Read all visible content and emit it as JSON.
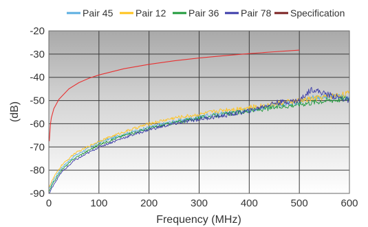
{
  "chart_data": {
    "type": "line",
    "title": "",
    "xlabel": "Frequency (MHz)",
    "ylabel": "(dB)",
    "xlim": [
      0,
      600
    ],
    "ylim": [
      -90,
      -20
    ],
    "x_ticks": [
      0,
      100,
      200,
      300,
      400,
      500,
      600
    ],
    "y_ticks": [
      -20,
      -30,
      -40,
      -50,
      -60,
      -70,
      -80,
      -90
    ],
    "x_tick_labels": [
      "0",
      "100",
      "200",
      "300",
      "400",
      "500",
      "600"
    ],
    "y_tick_labels": [
      "-20",
      "-30",
      "-40",
      "-50",
      "-60",
      "-70",
      "-80",
      "-90"
    ],
    "grid": true,
    "legend_position": "top",
    "background": "gradient gray (dark top to white bottom)",
    "series": [
      {
        "name": "Pair 45",
        "color": "#5aaee0",
        "x": [
          1,
          10,
          25,
          50,
          100,
          150,
          200,
          250,
          300,
          350,
          400,
          450,
          500,
          525,
          550,
          600
        ],
        "y": [
          -88,
          -84,
          -79,
          -74,
          -68,
          -64.5,
          -61.5,
          -59,
          -57,
          -55.5,
          -54,
          -52,
          -50.5,
          -48.5,
          -48.5,
          -48
        ]
      },
      {
        "name": "Pair 12",
        "color": "#ffc21a",
        "x": [
          1,
          10,
          25,
          50,
          100,
          150,
          200,
          250,
          300,
          350,
          400,
          450,
          500,
          550,
          600
        ],
        "y": [
          -87,
          -83,
          -78,
          -73,
          -67.5,
          -63.5,
          -60,
          -57.5,
          -56,
          -54,
          -53,
          -51.5,
          -50,
          -48.5,
          -47
        ]
      },
      {
        "name": "Pair 36",
        "color": "#1e9a3a",
        "x": [
          1,
          10,
          25,
          50,
          100,
          150,
          200,
          250,
          300,
          350,
          400,
          450,
          500,
          550,
          600
        ],
        "y": [
          -89,
          -85,
          -80,
          -75,
          -69,
          -65,
          -62,
          -59.5,
          -57.5,
          -56,
          -54.5,
          -53,
          -51.5,
          -50,
          -49
        ]
      },
      {
        "name": "Pair 78",
        "color": "#3a3aa8",
        "x": [
          1,
          10,
          25,
          50,
          100,
          150,
          200,
          250,
          300,
          350,
          400,
          450,
          500,
          525,
          550,
          600
        ],
        "y": [
          -90,
          -86,
          -81,
          -76,
          -70,
          -66,
          -62.5,
          -60,
          -58,
          -56.5,
          -54.5,
          -51,
          -50,
          -45,
          -47,
          -50
        ]
      },
      {
        "name": "Specification",
        "color": "#e83030",
        "legend_color": "#7a1f1f",
        "x": [
          1,
          3,
          5,
          10,
          20,
          40,
          60,
          80,
          100,
          150,
          200,
          250,
          300,
          350,
          400,
          450,
          500
        ],
        "y": [
          -67.5,
          -60.5,
          -57.5,
          -53.5,
          -49.5,
          -45,
          -42.3,
          -40.4,
          -39,
          -36.3,
          -34.4,
          -32.9,
          -31.7,
          -30.7,
          -29.8,
          -29,
          -28.3
        ]
      }
    ]
  }
}
